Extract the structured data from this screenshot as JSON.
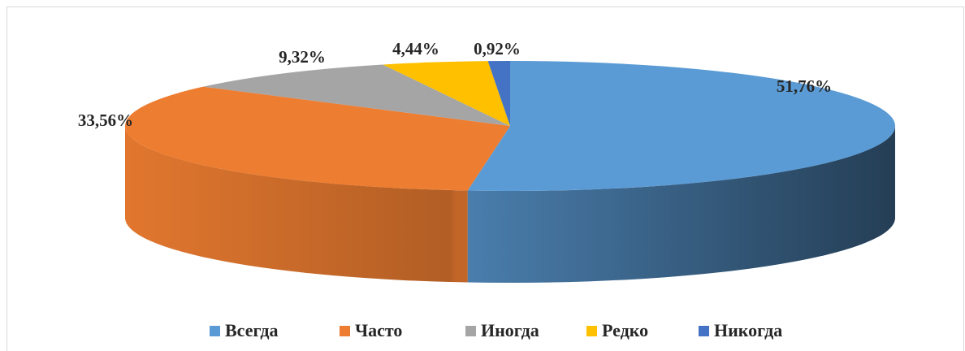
{
  "chart_data": {
    "type": "pie",
    "categories": [
      "Всегда",
      "Часто",
      "Иногда",
      "Редко",
      "Никогда"
    ],
    "values": [
      51.76,
      33.56,
      9.32,
      4.44,
      0.92
    ],
    "value_labels": [
      "51,76%",
      "33,56%",
      "9,32%",
      "4,44%",
      "0,92%"
    ],
    "colors": [
      "#5b9bd5",
      "#ed7d31",
      "#a5a5a5",
      "#ffc000",
      "#4472c4"
    ],
    "legend": "bottom"
  }
}
